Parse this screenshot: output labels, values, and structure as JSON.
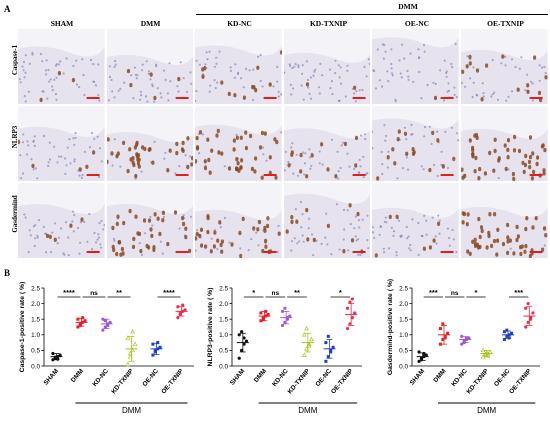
{
  "panel_a": {
    "letter": "A",
    "group_label": "DMM",
    "columns": [
      "SHAM",
      "DMM",
      "KD-NC",
      "KD-TXNIP",
      "OE-NC",
      "OE-TXNIP"
    ],
    "rows": [
      "Caspase-1",
      "NLRP3",
      "Gasdermind"
    ],
    "stain_level": [
      [
        0.05,
        0.15,
        0.12,
        0.05,
        0.05,
        0.2
      ],
      [
        0.05,
        0.6,
        0.8,
        0.2,
        0.15,
        0.95
      ],
      [
        0.05,
        0.75,
        0.6,
        0.2,
        0.15,
        0.95
      ]
    ],
    "colors": {
      "tissue": "#e6e3ef",
      "nuclei": "#6d6fae",
      "stain": "#8a4a22",
      "scale_bar": "#e0201b"
    }
  },
  "panel_b": {
    "letter": "B",
    "group_label": "DMM",
    "group_colors": [
      "#111111",
      "#ee1c24",
      "#a259d9",
      "#a4c41b",
      "#1f3ec7",
      "#ee2d4a"
    ]
  },
  "chart_data": [
    {
      "type": "scatter",
      "ylabel": "Caspase-1-positive rate ( %)",
      "ylim": [
        0,
        2.5
      ],
      "yticks": [
        "0.0",
        "0.5",
        "1.0",
        "1.5",
        "2.0",
        "2.5"
      ],
      "categories": [
        "SHAM",
        "DMM",
        "KD-NC",
        "KD-TXNIP",
        "OE-NC",
        "OE-TXNIP"
      ],
      "means": [
        0.3,
        1.4,
        1.35,
        0.55,
        0.55,
        1.75
      ],
      "sd": [
        0.1,
        0.12,
        0.15,
        0.4,
        0.18,
        0.15
      ],
      "points": [
        [
          0.2,
          0.25,
          0.3,
          0.35,
          0.4,
          0.28,
          0.22
        ],
        [
          1.25,
          1.3,
          1.4,
          1.45,
          1.5,
          1.35,
          1.55
        ],
        [
          1.15,
          1.25,
          1.3,
          1.4,
          1.5,
          1.45,
          1.35
        ],
        [
          0.05,
          0.3,
          0.5,
          0.7,
          0.9,
          0.4,
          1.1
        ],
        [
          0.35,
          0.45,
          0.55,
          0.6,
          0.7,
          0.5,
          0.75
        ],
        [
          1.55,
          1.65,
          1.75,
          1.8,
          1.9,
          1.7,
          1.95
        ]
      ],
      "comparisons": [
        {
          "from": 0,
          "to": 1,
          "label": "****"
        },
        {
          "from": 1,
          "to": 2,
          "label": "ns"
        },
        {
          "from": 2,
          "to": 3,
          "label": "**"
        },
        {
          "from": 4,
          "to": 5,
          "label": "****"
        }
      ],
      "group_label": "DMM"
    },
    {
      "type": "scatter",
      "ylabel": "NLRP3-positive rate ( %)",
      "ylim": [
        0,
        2.5
      ],
      "yticks": [
        "0.0",
        "0.5",
        "1.0",
        "1.5",
        "2.0",
        "2.5"
      ],
      "categories": [
        "SHAM",
        "DMM",
        "KD-NC",
        "KD-TXNIP",
        "OE-NC",
        "OE-TXNIP"
      ],
      "means": [
        0.75,
        1.6,
        1.55,
        0.75,
        0.55,
        1.65
      ],
      "sd": [
        0.3,
        0.15,
        0.2,
        0.3,
        0.3,
        0.35
      ],
      "points": [
        [
          0.25,
          0.5,
          0.7,
          0.8,
          1.0,
          1.1,
          0.9
        ],
        [
          1.45,
          1.5,
          1.6,
          1.65,
          1.7,
          1.55,
          1.75
        ],
        [
          1.3,
          1.4,
          1.5,
          1.6,
          1.75,
          1.85,
          1.55
        ],
        [
          0.35,
          0.55,
          0.7,
          0.85,
          1.0,
          1.2,
          0.65
        ],
        [
          0.15,
          0.3,
          0.45,
          0.6,
          0.75,
          0.95,
          0.5
        ],
        [
          1.2,
          1.35,
          1.55,
          1.7,
          1.85,
          2.05,
          2.15
        ]
      ],
      "comparisons": [
        {
          "from": 0,
          "to": 1,
          "label": "*"
        },
        {
          "from": 1,
          "to": 2,
          "label": "ns"
        },
        {
          "from": 2,
          "to": 3,
          "label": "**"
        },
        {
          "from": 4,
          "to": 5,
          "label": "*"
        }
      ],
      "group_label": "DMM"
    },
    {
      "type": "scatter",
      "ylabel": "Gasdermind-positive rate ( %)",
      "ylim": [
        0,
        2.5
      ],
      "yticks": [
        "0.0",
        "0.5",
        "1.0",
        "1.5",
        "2.0",
        "2.5"
      ],
      "categories": [
        "SHAM",
        "DMM",
        "KD-NC",
        "KD-TXNIP",
        "OE-NC",
        "OE-TXNIP"
      ],
      "means": [
        0.3,
        1.0,
        0.85,
        0.4,
        1.0,
        1.6
      ],
      "sd": [
        0.12,
        0.3,
        0.1,
        0.1,
        0.12,
        0.3
      ],
      "points": [
        [
          0.15,
          0.2,
          0.3,
          0.35,
          0.45,
          0.25,
          0.4
        ],
        [
          0.7,
          0.85,
          0.95,
          1.05,
          1.2,
          1.35,
          0.9
        ],
        [
          0.7,
          0.8,
          0.85,
          0.9,
          0.95,
          0.75,
          0.88
        ],
        [
          0.3,
          0.35,
          0.4,
          0.45,
          0.5,
          0.38,
          0.33
        ],
        [
          0.85,
          0.95,
          1.0,
          1.05,
          1.1,
          1.15,
          0.9
        ],
        [
          1.25,
          1.4,
          1.55,
          1.7,
          1.85,
          2.0,
          1.5
        ]
      ],
      "comparisons": [
        {
          "from": 0,
          "to": 1,
          "label": "***"
        },
        {
          "from": 1,
          "to": 2,
          "label": "ns"
        },
        {
          "from": 2,
          "to": 3,
          "label": "*"
        },
        {
          "from": 4,
          "to": 5,
          "label": "***"
        }
      ],
      "group_label": "DMM"
    }
  ]
}
